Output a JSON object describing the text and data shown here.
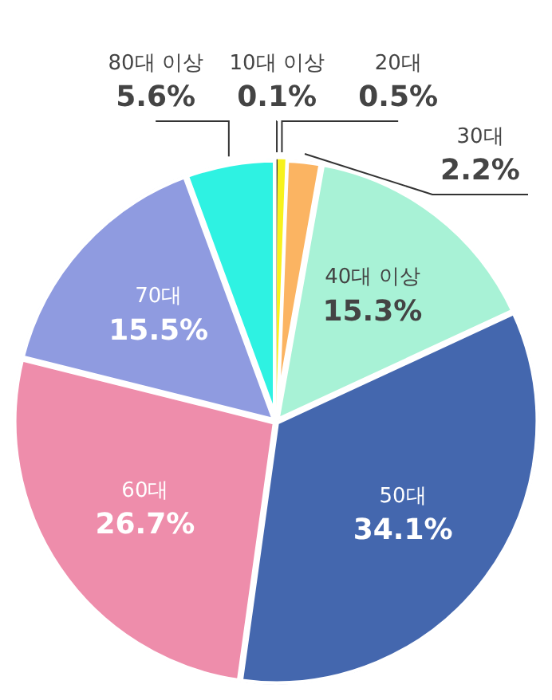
{
  "chart_data": {
    "type": "pie",
    "categories": [
      "10대 이상",
      "20대",
      "30대",
      "40대 이상",
      "50대",
      "60대",
      "70대",
      "80대 이상"
    ],
    "values": [
      0.1,
      0.5,
      2.2,
      15.3,
      34.1,
      26.7,
      15.5,
      5.6
    ],
    "value_labels": [
      "0.1%",
      "0.5%",
      "2.2%",
      "15.3%",
      "34.1%",
      "26.7%",
      "15.5%",
      "5.6%"
    ],
    "colors": [
      "#3a3a3a",
      "#f7f21c",
      "#fbb462",
      "#a8f2d6",
      "#4467ae",
      "#ee8dab",
      "#8f9be0",
      "#2ef2e2"
    ]
  }
}
